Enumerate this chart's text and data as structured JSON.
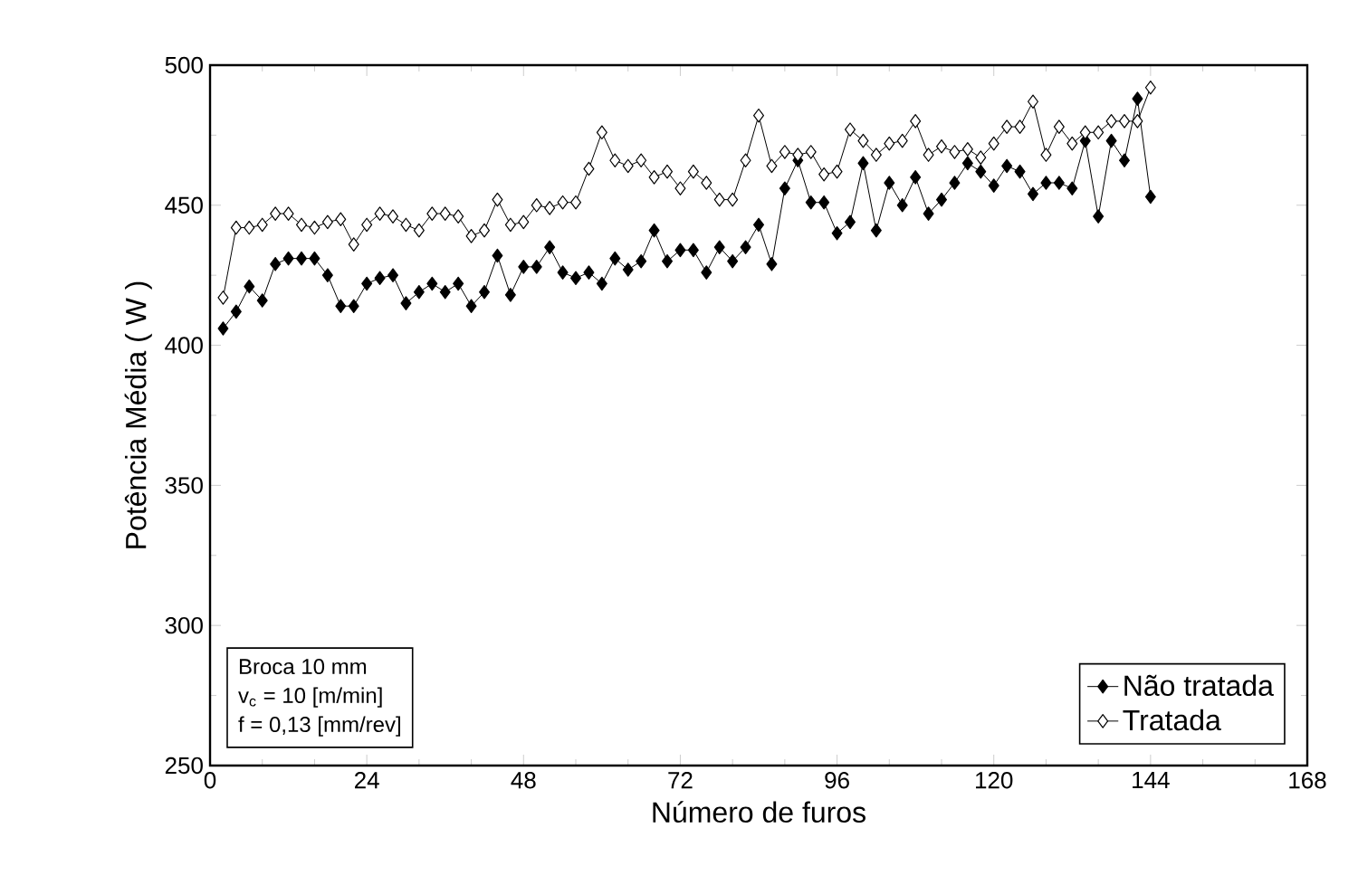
{
  "chart_data": {
    "type": "line",
    "xlabel": "Número de furos",
    "ylabel": "Potência Média ( W )",
    "x": [
      2,
      4,
      6,
      8,
      10,
      12,
      14,
      16,
      18,
      20,
      22,
      24,
      26,
      28,
      30,
      32,
      34,
      36,
      38,
      40,
      42,
      44,
      46,
      48,
      50,
      52,
      54,
      56,
      58,
      60,
      62,
      64,
      66,
      68,
      70,
      72,
      74,
      76,
      78,
      80,
      82,
      84,
      86,
      88,
      90,
      92,
      94,
      96,
      98,
      100,
      102,
      104,
      106,
      108,
      110,
      112,
      114,
      116,
      118,
      120,
      122,
      124,
      126,
      128,
      130,
      132,
      134,
      136,
      138,
      140,
      142,
      144
    ],
    "series": [
      {
        "name": "Não tratada",
        "color": "#000000",
        "values": [
          406,
          412,
          421,
          416,
          429,
          431,
          431,
          431,
          425,
          414,
          414,
          422,
          424,
          425,
          415,
          419,
          422,
          419,
          422,
          414,
          419,
          432,
          418,
          428,
          428,
          435,
          426,
          424,
          426,
          422,
          431,
          427,
          430,
          441,
          430,
          434,
          434,
          426,
          435,
          430,
          435,
          443,
          429,
          456,
          466,
          451,
          451,
          440,
          444,
          465,
          441,
          458,
          450,
          460,
          447,
          452,
          458,
          465,
          462,
          457,
          464,
          462,
          454,
          458,
          458,
          456,
          473,
          446,
          473,
          466,
          488,
          453
        ]
      },
      {
        "name": "Tratada",
        "color": "#000000",
        "values": [
          417,
          442,
          442,
          443,
          447,
          447,
          443,
          442,
          444,
          445,
          436,
          443,
          447,
          446,
          443,
          441,
          447,
          447,
          446,
          439,
          441,
          452,
          443,
          444,
          450,
          449,
          451,
          451,
          463,
          476,
          466,
          464,
          466,
          460,
          462,
          456,
          462,
          458,
          452,
          452,
          466,
          482,
          464,
          469,
          468,
          469,
          461,
          462,
          477,
          473,
          468,
          472,
          473,
          480,
          468,
          471,
          469,
          470,
          467,
          472,
          478,
          478,
          487,
          468,
          478,
          472,
          476,
          476,
          480,
          480,
          480,
          492
        ]
      }
    ],
    "xlim": [
      0,
      168
    ],
    "xticks": [
      0,
      24,
      48,
      72,
      96,
      120,
      144,
      168
    ],
    "ylim": [
      250,
      500
    ],
    "yticks": [
      250,
      300,
      350,
      400,
      450,
      500
    ],
    "marker": "diamond",
    "legend": "bottom right",
    "annotations": [
      "Broca 10 mm",
      "v$_{c}$ = 10 [m/min]",
      "f = 0,13 [mm/rev]"
    ]
  }
}
